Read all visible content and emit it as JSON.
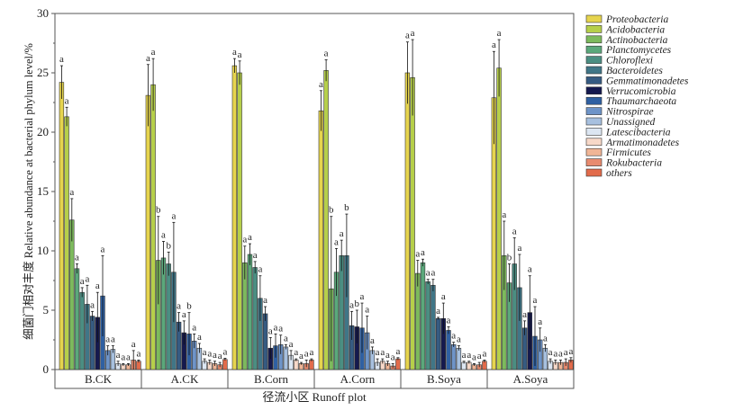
{
  "chart_data": {
    "type": "bar",
    "title": "",
    "ylabel": "细菌门相对丰度 Relative abundance at bacterial phylum level/%",
    "xlabel": "径流小区 Runoff plot",
    "ylim": [
      0,
      30
    ],
    "yticks": [
      0,
      5,
      10,
      15,
      20,
      25,
      30
    ],
    "categories": [
      "B.CK",
      "A.CK",
      "B.Corn",
      "A.Corn",
      "B.Soya",
      "A.Soya"
    ],
    "legend_position": "right",
    "series": [
      {
        "name": "Proteobacteria",
        "color": "#e6d44e",
        "values": [
          24.2,
          23.1,
          25.6,
          21.8,
          25.0,
          22.9
        ],
        "errors": [
          1.4,
          2.6,
          0.6,
          1.7,
          2.6,
          3.9
        ],
        "letters": [
          "a",
          "a",
          "a",
          "a",
          "a",
          "a"
        ]
      },
      {
        "name": "Acidobacteria",
        "color": "#b6cf4a",
        "values": [
          21.3,
          24.0,
          25.0,
          25.2,
          24.6,
          25.4
        ],
        "errors": [
          0.8,
          2.2,
          1.0,
          0.9,
          3.2,
          2.4
        ],
        "letters": [
          "a",
          "a",
          "a",
          "a",
          "a",
          "a"
        ]
      },
      {
        "name": "Actinobacteria",
        "color": "#7dba5d",
        "values": [
          12.6,
          9.2,
          9.0,
          6.8,
          8.1,
          9.6
        ],
        "errors": [
          1.8,
          3.7,
          1.4,
          6.1,
          1.1,
          2.9
        ],
        "letters": [
          "a",
          "b",
          "a",
          "b",
          "a",
          "a"
        ]
      },
      {
        "name": "Planctomycetes",
        "color": "#5ba87b",
        "values": [
          8.5,
          9.4,
          9.7,
          8.2,
          9.0,
          7.3
        ],
        "errors": [
          0.4,
          1.4,
          0.9,
          2.0,
          0.3,
          1.6
        ],
        "letters": [
          "a",
          "a",
          "a",
          "a",
          "a",
          "b"
        ]
      },
      {
        "name": "Chloroflexi",
        "color": "#4b8e82",
        "values": [
          6.5,
          8.9,
          8.6,
          9.6,
          7.4,
          8.9
        ],
        "errors": [
          0.4,
          1.0,
          0.5,
          1.3,
          0.2,
          2.2
        ],
        "letters": [
          "a",
          "b",
          "a",
          "a",
          "a",
          "a"
        ]
      },
      {
        "name": "Bacteroidetes",
        "color": "#407687",
        "values": [
          5.5,
          8.2,
          6.0,
          9.6,
          7.1,
          6.9
        ],
        "errors": [
          1.6,
          4.2,
          1.9,
          3.5,
          0.5,
          2.8
        ],
        "letters": [
          "a",
          "a",
          "a",
          "b",
          "a",
          "a"
        ]
      },
      {
        "name": "Gemmatimonadetes",
        "color": "#365b82",
        "values": [
          4.5,
          4.0,
          4.7,
          3.7,
          4.3,
          3.5
        ],
        "errors": [
          0.4,
          0.8,
          0.6,
          1.2,
          0.1,
          0.6
        ],
        "letters": [
          "a",
          "a",
          "a",
          "a",
          "a",
          "a"
        ]
      },
      {
        "name": "Verrucomicrobia",
        "color": "#15194f",
        "values": [
          4.4,
          3.1,
          1.8,
          3.6,
          4.3,
          4.8
        ],
        "errors": [
          2.1,
          1.0,
          0.9,
          1.4,
          1.3,
          3.1
        ],
        "letters": [
          "a",
          "a",
          "a",
          "b",
          "a",
          "a"
        ]
      },
      {
        "name": "Thaumarchaeota",
        "color": "#2f60a2",
        "values": [
          6.2,
          3.0,
          2.0,
          3.5,
          3.3,
          2.8
        ],
        "errors": [
          3.4,
          1.8,
          1.0,
          2.1,
          0.3,
          2.5
        ],
        "letters": [
          "a",
          "b",
          "a",
          "a",
          "a",
          "a"
        ]
      },
      {
        "name": "Nitrospirae",
        "color": "#6e94c8",
        "values": [
          1.6,
          2.4,
          2.1,
          3.1,
          2.1,
          2.5
        ],
        "errors": [
          0.4,
          0.6,
          0.8,
          1.4,
          0.2,
          1.0
        ],
        "letters": [
          "a",
          "a",
          "a",
          "a",
          "a",
          "a"
        ]
      },
      {
        "name": "Unassigned",
        "color": "#a7c0df",
        "values": [
          1.7,
          1.8,
          1.9,
          1.6,
          1.8,
          1.8
        ],
        "errors": [
          0.3,
          0.4,
          0.2,
          0.3,
          0.2,
          0.3
        ],
        "letters": [
          "a",
          "a",
          "a",
          "a",
          "a",
          "a"
        ]
      },
      {
        "name": "Latescibacteria",
        "color": "#dce6f2",
        "values": [
          0.5,
          0.7,
          1.2,
          0.6,
          0.6,
          0.7
        ],
        "errors": [
          0.2,
          0.2,
          0.4,
          0.3,
          0.1,
          0.2
        ],
        "letters": [
          "a",
          "a",
          "a",
          "a",
          "a",
          "a"
        ]
      },
      {
        "name": "Armatimonadetes",
        "color": "#f7d8c8",
        "values": [
          0.4,
          0.6,
          0.8,
          0.7,
          0.6,
          0.6
        ],
        "errors": [
          0.1,
          0.2,
          0.1,
          0.2,
          0.1,
          0.2
        ],
        "letters": [
          "a",
          "a",
          "a",
          "a",
          "a",
          "a"
        ]
      },
      {
        "name": "Firmicutes",
        "color": "#f0b596",
        "values": [
          0.4,
          0.5,
          0.5,
          0.5,
          0.4,
          0.6
        ],
        "errors": [
          0.1,
          0.2,
          0.1,
          0.2,
          0.1,
          0.2
        ],
        "letters": [
          "a",
          "a",
          "a",
          "a",
          "a",
          "a"
        ]
      },
      {
        "name": "Rokubacteria",
        "color": "#e88b6f",
        "values": [
          0.8,
          0.4,
          0.5,
          0.3,
          0.4,
          0.6
        ],
        "errors": [
          0.8,
          0.2,
          0.3,
          0.2,
          0.2,
          0.3
        ],
        "letters": [
          "a",
          "a",
          "a",
          "a",
          "a",
          "a"
        ]
      },
      {
        "name": "others",
        "color": "#e26b4b",
        "values": [
          0.7,
          0.85,
          0.8,
          0.9,
          0.7,
          0.8
        ],
        "errors": [
          0.1,
          0.1,
          0.1,
          0.1,
          0.1,
          0.2
        ],
        "letters": [
          "a",
          "a",
          "a",
          "a",
          "a",
          "a"
        ]
      }
    ]
  }
}
